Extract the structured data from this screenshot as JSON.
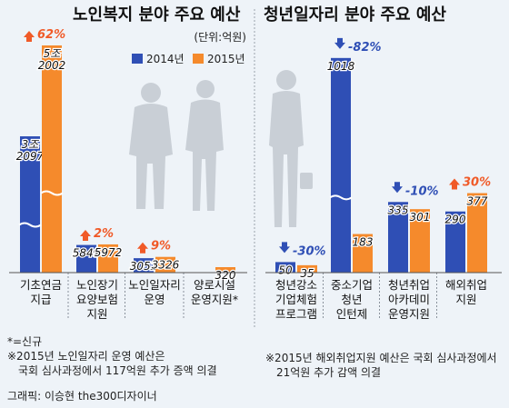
{
  "colors": {
    "y2014": "#2f4fb5",
    "y2015": "#f58a2c",
    "up": "#f05a28",
    "down": "#2f4fb5",
    "panel": "#eef3f8"
  },
  "unit_label": "(단위:억원)",
  "legend": {
    "y2014": "2014년",
    "y2015": "2015년"
  },
  "chart_data": [
    {
      "type": "bar",
      "title": "노인복지 분야 주요 예산",
      "categories": [
        "기초연금 지급",
        "노인장기 요양보험 지원",
        "노인일자리 운영",
        "양로시설 운영지원*"
      ],
      "category_lines": [
        [
          "기초연금",
          "지급"
        ],
        [
          "노인장기",
          "요양보험",
          "지원"
        ],
        [
          "노인일자리",
          "운영"
        ],
        [
          "양로시설",
          "운영지원*"
        ]
      ],
      "series": [
        {
          "name": "2014년",
          "values": [
            32097,
            5849,
            3052,
            null
          ],
          "labels": [
            [
              "3조",
              "2097"
            ],
            [
              "5849"
            ],
            [
              "3052"
            ],
            []
          ]
        },
        {
          "name": "2015년",
          "values": [
            52002,
            5972,
            3326,
            320
          ],
          "labels": [
            [
              "5조",
              "2002"
            ],
            [
              "5972"
            ],
            [
              "3326"
            ],
            [
              "320"
            ]
          ]
        }
      ],
      "changes": [
        {
          "text": "62%",
          "direction": "up"
        },
        {
          "text": "2%",
          "direction": "up"
        },
        {
          "text": "9%",
          "direction": "up"
        },
        null
      ]
    },
    {
      "type": "bar",
      "title": "청년일자리 분야 주요 예산",
      "categories": [
        "청년강소 기업체험 프로그램",
        "중소기업 청년 인턴제",
        "청년취업 아카데미 운영지원",
        "해외취업 지원"
      ],
      "category_lines": [
        [
          "청년강소",
          "기업체험",
          "프로그램"
        ],
        [
          "중소기업",
          "청년",
          "인턴제"
        ],
        [
          "청년취업",
          "아카데미",
          "운영지원"
        ],
        [
          "해외취업",
          "지원"
        ]
      ],
      "series": [
        {
          "name": "2014년",
          "values": [
            50,
            1018,
            335,
            290
          ],
          "labels": [
            [
              "50"
            ],
            [
              "1018"
            ],
            [
              "335"
            ],
            [
              "290"
            ]
          ]
        },
        {
          "name": "2015년",
          "values": [
            35,
            183,
            301,
            377
          ],
          "labels": [
            [
              "35"
            ],
            [
              "183"
            ],
            [
              "301"
            ],
            [
              "377"
            ]
          ]
        }
      ],
      "changes": [
        {
          "text": "-30%",
          "direction": "down"
        },
        {
          "text": "-82%",
          "direction": "down"
        },
        {
          "text": "-10%",
          "direction": "down"
        },
        {
          "text": "30%",
          "direction": "up"
        }
      ]
    }
  ],
  "notes": {
    "left_1": "*=신규",
    "left_2": "※2015년 노인일자리 운영 예산은",
    "left_3": "국회 심사과정에서 117억원 추가 증액 의결",
    "right_1": "※2015년 해외취업지원 예산은 국회 심사과정에서",
    "right_2": "21억원 추가 감액 의결",
    "credit": "그래픽: 이승현 the300디자이너"
  }
}
